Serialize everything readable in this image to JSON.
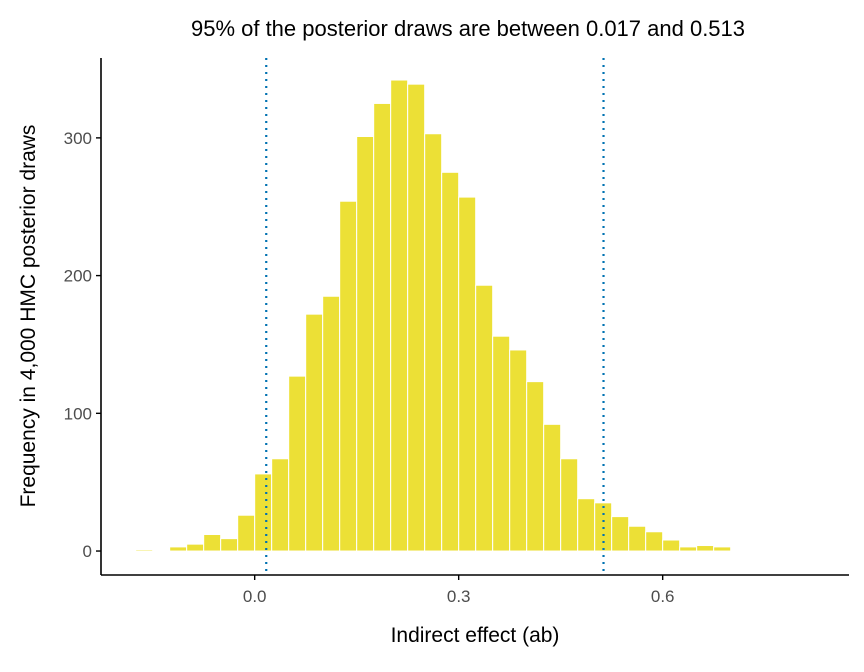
{
  "chart_data": {
    "type": "bar",
    "title": "95% of the posterior draws are between 0.017 and 0.513",
    "xlabel": "Indirect effect (ab)",
    "ylabel": "Frequency in 4,000 HMC posterior draws",
    "xlim": [
      -0.226,
      0.874
    ],
    "ylim": [
      -17.4,
      358
    ],
    "xticks": [
      0.0,
      0.3,
      0.6
    ],
    "xtick_labels": [
      "0.0",
      "0.3",
      "0.6"
    ],
    "yticks": [
      0,
      100,
      200,
      300
    ],
    "ytick_labels": [
      "0",
      "100",
      "200",
      "300"
    ],
    "grid": false,
    "bin_width": 0.025,
    "bin_centers": [
      -0.1625,
      -0.1375,
      -0.1125,
      -0.0875,
      -0.0625,
      -0.0375,
      -0.0125,
      0.0125,
      0.0375,
      0.0625,
      0.0875,
      0.1125,
      0.1375,
      0.1625,
      0.1875,
      0.2125,
      0.2375,
      0.2625,
      0.2875,
      0.3125,
      0.3375,
      0.3625,
      0.3875,
      0.4125,
      0.4375,
      0.4625,
      0.4875,
      0.5125,
      0.5375,
      0.5625,
      0.5875,
      0.6125,
      0.6375,
      0.6625,
      0.6875
    ],
    "values": [
      1,
      0,
      3,
      5,
      12,
      9,
      26,
      56,
      67,
      127,
      172,
      185,
      254,
      301,
      325,
      342,
      339,
      303,
      275,
      257,
      193,
      156,
      146,
      123,
      92,
      67,
      38,
      35,
      25,
      18,
      14,
      8,
      3,
      4,
      3
    ],
    "vlines": [
      0.017,
      0.513
    ],
    "colors": {
      "bar_fill": "#ECE036",
      "bar_edge": "#FFFFFF",
      "vline": "#0072B2",
      "axis": "#000000"
    }
  }
}
